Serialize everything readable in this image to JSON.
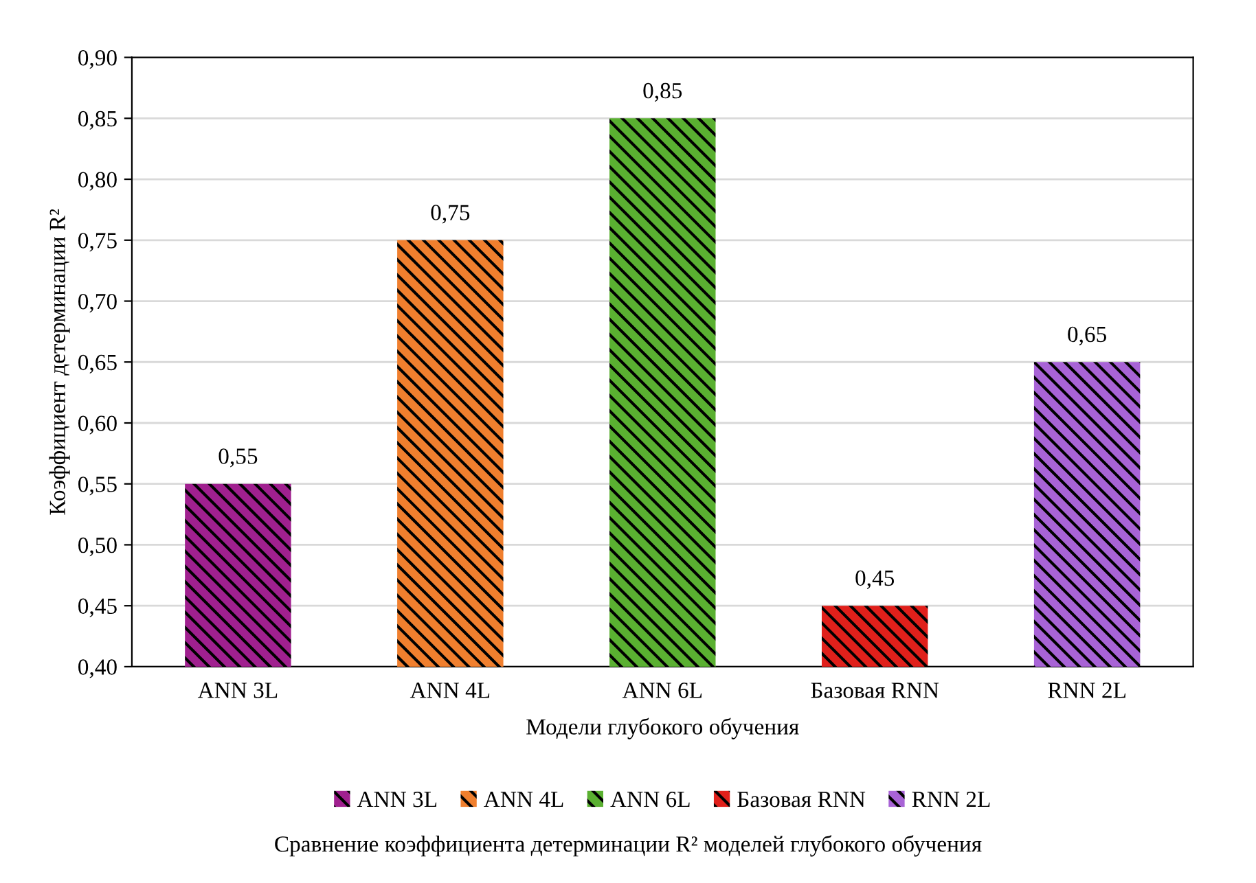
{
  "chart_data": {
    "type": "bar",
    "title": "Сравнение коэффициента детерминации R² моделей глубокого обучения",
    "xlabel": "Модели глубокого обучения",
    "ylabel": "Коэффициент детерминации R²",
    "categories": [
      "ANN 3L",
      "ANN 4L",
      "ANN 6L",
      "Базовая RNN",
      "RNN 2L"
    ],
    "series": [
      {
        "name": "ANN 3L",
        "color": "#a0208f",
        "values": [
          0.55,
          null,
          null,
          null,
          null
        ],
        "value_labels": [
          "0,55",
          null,
          null,
          null,
          null
        ]
      },
      {
        "name": "ANN 4L",
        "color": "#f07f2e",
        "values": [
          null,
          0.75,
          null,
          null,
          null
        ],
        "value_labels": [
          null,
          "0,75",
          null,
          null,
          null
        ]
      },
      {
        "name": "ANN 6L",
        "color": "#5ab031",
        "values": [
          null,
          null,
          0.85,
          null,
          null
        ],
        "value_labels": [
          null,
          null,
          "0,85",
          null,
          null
        ]
      },
      {
        "name": "Базовая RNN",
        "color": "#e0201b",
        "values": [
          null,
          null,
          null,
          0.45,
          null
        ],
        "value_labels": [
          null,
          null,
          null,
          "0,45",
          null
        ]
      },
      {
        "name": "RNN 2L",
        "color": "#a863d6",
        "values": [
          null,
          null,
          null,
          null,
          0.65
        ],
        "value_labels": [
          null,
          null,
          null,
          null,
          "0,65"
        ]
      }
    ],
    "ylim": [
      0.4,
      0.9
    ],
    "yticks": [
      {
        "value": 0.4,
        "label": "0,40"
      },
      {
        "value": 0.45,
        "label": "0,45"
      },
      {
        "value": 0.5,
        "label": "0,50"
      },
      {
        "value": 0.55,
        "label": "0,55"
      },
      {
        "value": 0.6,
        "label": "0,60"
      },
      {
        "value": 0.65,
        "label": "0,65"
      },
      {
        "value": 0.7,
        "label": "0,70"
      },
      {
        "value": 0.75,
        "label": "0,75"
      },
      {
        "value": 0.8,
        "label": "0,80"
      },
      {
        "value": 0.85,
        "label": "0,85"
      },
      {
        "value": 0.9,
        "label": "0,90"
      }
    ],
    "grid": "y",
    "legend": "bottom"
  }
}
